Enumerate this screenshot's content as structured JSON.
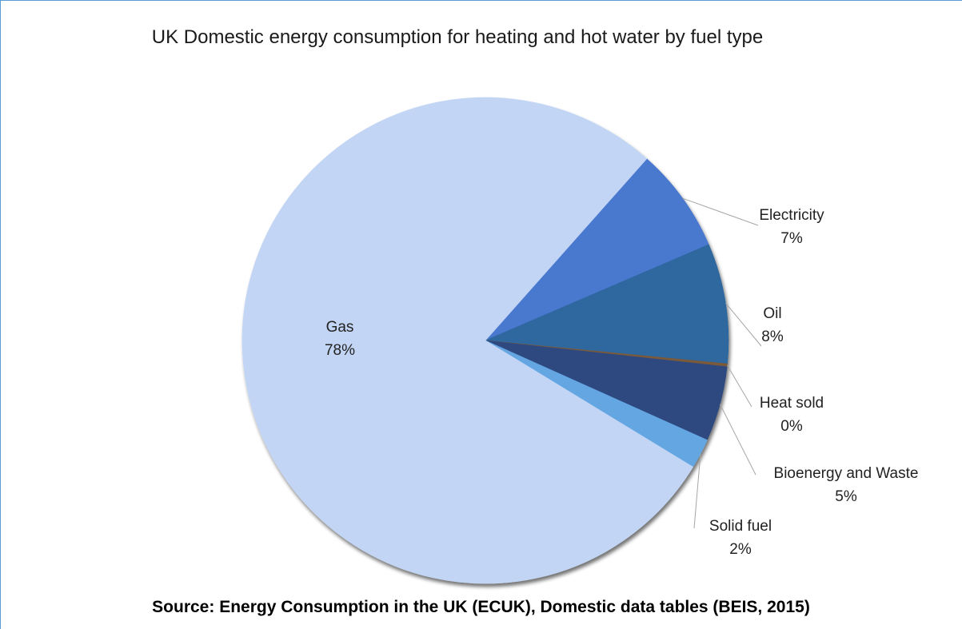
{
  "chart_data": {
    "type": "pie",
    "title": "UK Domestic energy consumption for heating and hot water by fuel type",
    "slices": [
      {
        "label": "Gas",
        "value": 78,
        "value_label": "78%",
        "color": "#c2d5f4"
      },
      {
        "label": "Electricity",
        "value": 7,
        "value_label": "7%",
        "color": "#4a78cf"
      },
      {
        "label": "Oil",
        "value": 8,
        "value_label": "8%",
        "color": "#2e679e"
      },
      {
        "label": "Heat sold",
        "value": 0.2,
        "value_label": "0%",
        "color": "#7a5a3a"
      },
      {
        "label": "Bioenergy and Waste",
        "value": 5,
        "value_label": "5%",
        "color": "#2f4a80"
      },
      {
        "label": "Solid fuel",
        "value": 2,
        "value_label": "2%",
        "color": "#64a6e2"
      }
    ],
    "legend": "none"
  },
  "source": "Source: Energy Consumption in the UK (ECUK), Domestic data tables (BEIS, 2015)"
}
